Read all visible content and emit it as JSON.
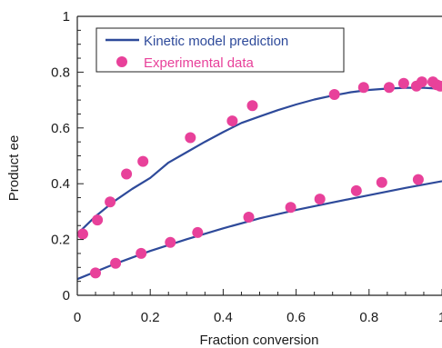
{
  "chart_data": {
    "type": "scatter",
    "xlabel": "Fraction conversion",
    "ylabel": "Product ee",
    "xlim": [
      0,
      1
    ],
    "ylim": [
      0,
      1
    ],
    "x_ticks": [
      "0",
      "0.2",
      "0.4",
      "0.6",
      "0.8",
      "1"
    ],
    "y_ticks": [
      "0",
      "0.2",
      "0.4",
      "0.6",
      "0.8",
      "1"
    ],
    "grid": false,
    "legend_position": "top-left",
    "legend": {
      "model_label": "Kinetic model prediction",
      "data_label": "Experimental data"
    },
    "colors": {
      "model": "#2e4a9a",
      "data": "#e8419a"
    },
    "series": [
      {
        "name": "Kinetic model prediction",
        "kind": "line",
        "x": [
          0,
          0.05,
          0.1,
          0.15,
          0.2,
          0.25,
          0.3,
          0.35,
          0.4,
          0.45,
          0.5,
          0.55,
          0.6,
          0.65,
          0.7,
          0.75,
          0.8,
          0.85,
          0.9,
          0.95,
          1.0
        ],
        "y": [
          0.22,
          0.283,
          0.336,
          0.381,
          0.421,
          0.476,
          0.513,
          0.55,
          0.585,
          0.618,
          0.641,
          0.664,
          0.684,
          0.702,
          0.716,
          0.728,
          0.736,
          0.741,
          0.744,
          0.744,
          0.74
        ]
      },
      {
        "name": "Kinetic model prediction",
        "kind": "line",
        "x": [
          0,
          0.1,
          0.2,
          0.3,
          0.4,
          0.5,
          0.6,
          0.7,
          0.8,
          0.9,
          1.0
        ],
        "y": [
          0.058,
          0.111,
          0.159,
          0.201,
          0.24,
          0.276,
          0.306,
          0.333,
          0.359,
          0.385,
          0.409
        ]
      },
      {
        "name": "Experimental data",
        "kind": "scatter",
        "x": [
          0.015,
          0.055,
          0.09,
          0.135,
          0.18,
          0.31,
          0.425,
          0.48,
          0.705,
          0.785,
          0.855,
          0.895,
          0.93,
          0.945,
          0.975,
          0.985,
          0.995
        ],
        "y": [
          0.22,
          0.27,
          0.335,
          0.435,
          0.48,
          0.565,
          0.625,
          0.68,
          0.72,
          0.745,
          0.745,
          0.76,
          0.75,
          0.765,
          0.765,
          0.755,
          0.75
        ]
      },
      {
        "name": "Experimental data",
        "kind": "scatter",
        "x": [
          0.05,
          0.105,
          0.175,
          0.255,
          0.33,
          0.47,
          0.585,
          0.665,
          0.765,
          0.835,
          0.935
        ],
        "y": [
          0.08,
          0.115,
          0.15,
          0.19,
          0.225,
          0.28,
          0.315,
          0.345,
          0.375,
          0.405,
          0.415
        ]
      }
    ]
  }
}
